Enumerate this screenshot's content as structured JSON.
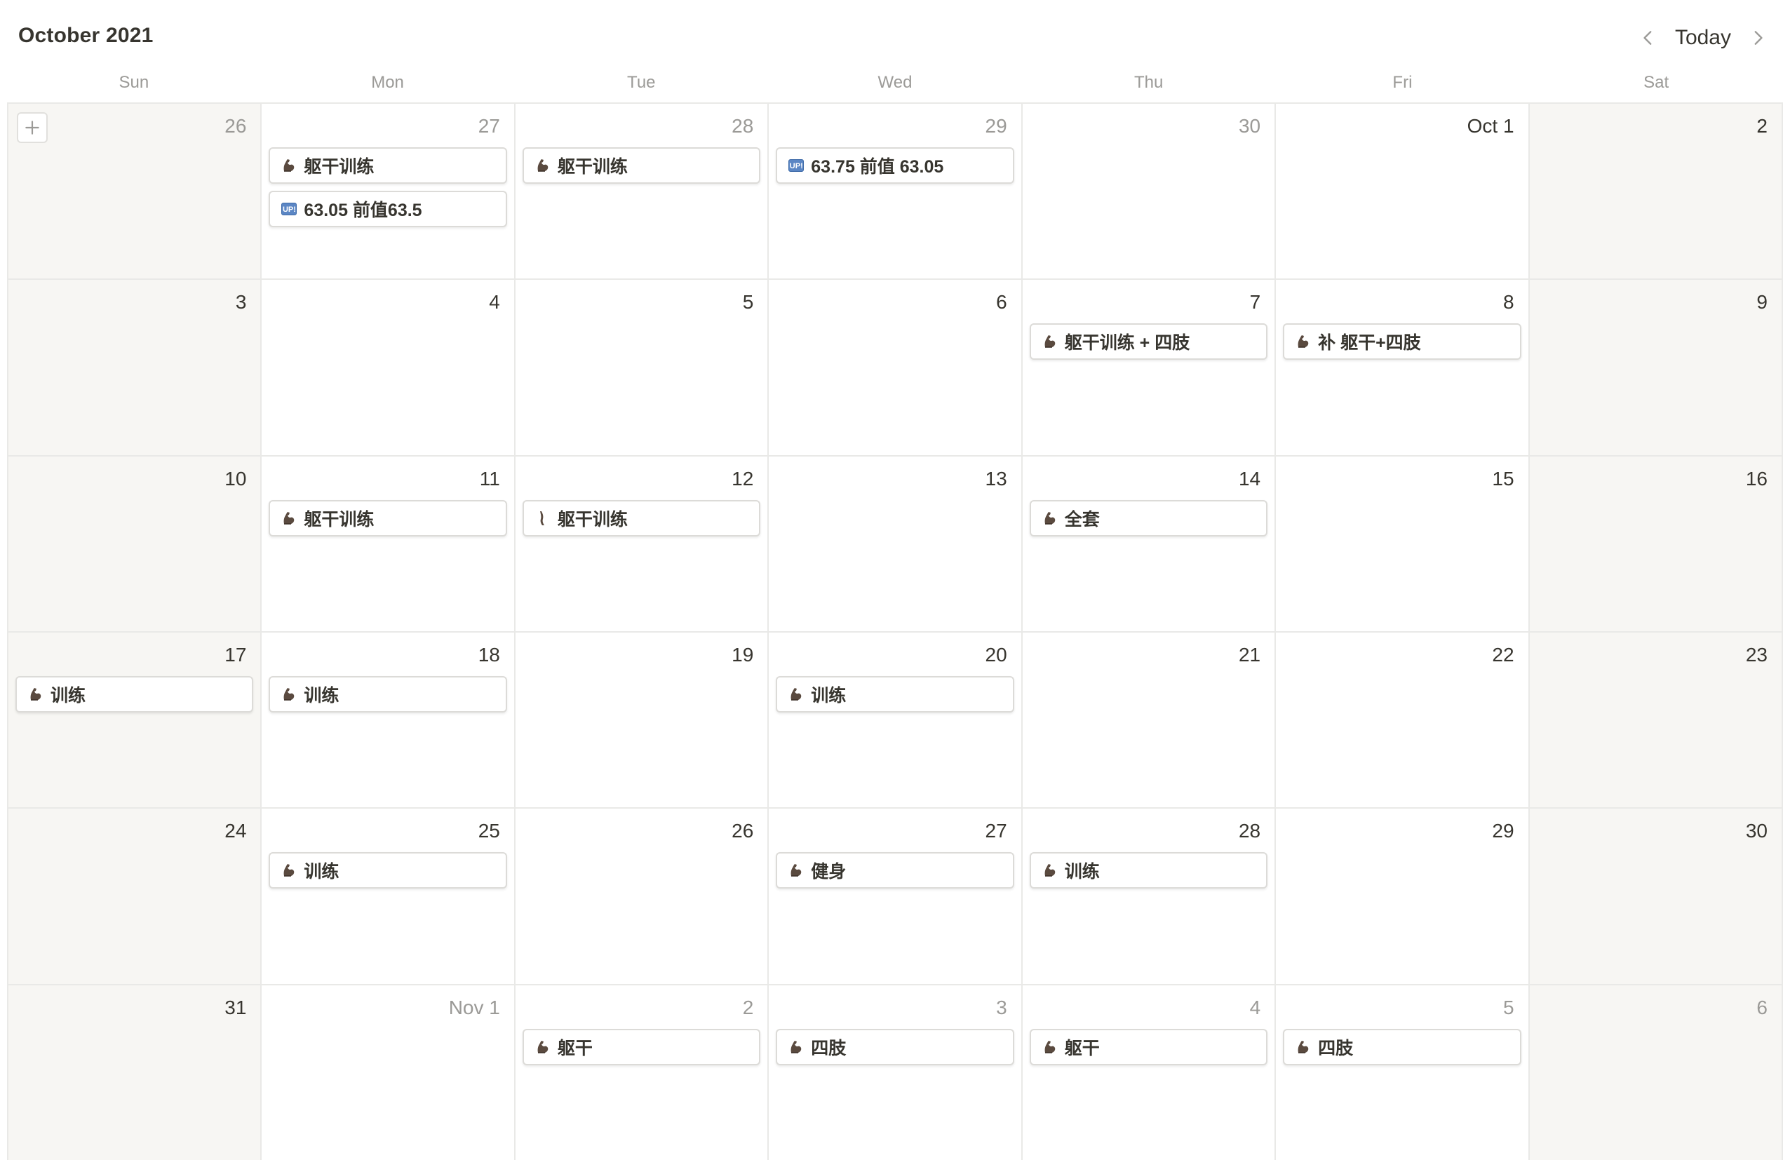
{
  "header": {
    "title": "October 2021",
    "today_label": "Today"
  },
  "weekdays": [
    "Sun",
    "Mon",
    "Tue",
    "Wed",
    "Thu",
    "Fri",
    "Sat"
  ],
  "weeks": [
    [
      {
        "label": "26",
        "muted": true,
        "events": []
      },
      {
        "label": "27",
        "muted": true,
        "events": [
          {
            "icon": "flexed-biceps-icon",
            "title": "躯干训练"
          },
          {
            "icon": "up-badge-icon",
            "title": "63.05 前值63.5"
          }
        ]
      },
      {
        "label": "28",
        "muted": true,
        "events": [
          {
            "icon": "flexed-biceps-icon",
            "title": "躯干训练"
          }
        ]
      },
      {
        "label": "29",
        "muted": true,
        "events": [
          {
            "icon": "up-badge-icon",
            "title": "63.75 前值 63.05"
          }
        ]
      },
      {
        "label": "30",
        "muted": true,
        "events": []
      },
      {
        "label": "Oct 1",
        "muted": false,
        "events": []
      },
      {
        "label": "2",
        "muted": false,
        "events": []
      }
    ],
    [
      {
        "label": "3",
        "muted": false,
        "events": []
      },
      {
        "label": "4",
        "muted": false,
        "events": []
      },
      {
        "label": "5",
        "muted": false,
        "events": []
      },
      {
        "label": "6",
        "muted": false,
        "events": []
      },
      {
        "label": "7",
        "muted": false,
        "events": [
          {
            "icon": "flexed-biceps-icon",
            "title": "躯干训练 + 四肢"
          }
        ]
      },
      {
        "label": "8",
        "muted": false,
        "events": [
          {
            "icon": "flexed-biceps-icon",
            "title": "补 躯干+四肢"
          }
        ]
      },
      {
        "label": "9",
        "muted": false,
        "events": []
      }
    ],
    [
      {
        "label": "10",
        "muted": false,
        "events": []
      },
      {
        "label": "11",
        "muted": false,
        "events": [
          {
            "icon": "flexed-biceps-icon",
            "title": "躯干训练"
          }
        ]
      },
      {
        "label": "12",
        "muted": false,
        "events": [
          {
            "icon": "leg-icon",
            "title": "躯干训练"
          }
        ]
      },
      {
        "label": "13",
        "muted": false,
        "events": []
      },
      {
        "label": "14",
        "muted": false,
        "events": [
          {
            "icon": "flexed-biceps-icon",
            "title": "全套"
          }
        ]
      },
      {
        "label": "15",
        "muted": false,
        "events": []
      },
      {
        "label": "16",
        "muted": false,
        "events": []
      }
    ],
    [
      {
        "label": "17",
        "muted": false,
        "events": [
          {
            "icon": "flexed-biceps-icon",
            "title": "训练"
          }
        ]
      },
      {
        "label": "18",
        "muted": false,
        "events": [
          {
            "icon": "flexed-biceps-icon",
            "title": "训练"
          }
        ]
      },
      {
        "label": "19",
        "muted": false,
        "events": []
      },
      {
        "label": "20",
        "muted": false,
        "events": [
          {
            "icon": "flexed-biceps-icon",
            "title": "训练"
          }
        ]
      },
      {
        "label": "21",
        "muted": false,
        "events": []
      },
      {
        "label": "22",
        "muted": false,
        "events": []
      },
      {
        "label": "23",
        "muted": false,
        "events": []
      }
    ],
    [
      {
        "label": "24",
        "muted": false,
        "events": []
      },
      {
        "label": "25",
        "muted": false,
        "events": [
          {
            "icon": "flexed-biceps-icon",
            "title": "训练"
          }
        ]
      },
      {
        "label": "26",
        "muted": false,
        "events": []
      },
      {
        "label": "27",
        "muted": false,
        "events": [
          {
            "icon": "flexed-biceps-icon",
            "title": "健身"
          }
        ]
      },
      {
        "label": "28",
        "muted": false,
        "events": [
          {
            "icon": "flexed-biceps-icon",
            "title": "训练"
          }
        ]
      },
      {
        "label": "29",
        "muted": false,
        "events": []
      },
      {
        "label": "30",
        "muted": false,
        "events": []
      }
    ],
    [
      {
        "label": "31",
        "muted": false,
        "events": []
      },
      {
        "label": "Nov 1",
        "muted": true,
        "events": []
      },
      {
        "label": "2",
        "muted": true,
        "events": [
          {
            "icon": "flexed-biceps-icon",
            "title": "躯干"
          }
        ]
      },
      {
        "label": "3",
        "muted": true,
        "events": [
          {
            "icon": "flexed-biceps-icon",
            "title": "四肢"
          }
        ]
      },
      {
        "label": "4",
        "muted": true,
        "events": [
          {
            "icon": "flexed-biceps-icon",
            "title": "躯干"
          }
        ]
      },
      {
        "label": "5",
        "muted": true,
        "events": [
          {
            "icon": "flexed-biceps-icon",
            "title": "四肢"
          }
        ]
      },
      {
        "label": "6",
        "muted": true,
        "events": []
      }
    ]
  ],
  "up_badge_text": "UP!",
  "colors": {
    "text": "#37352f",
    "muted": "#9b9a97",
    "weekend_bg": "#f7f6f3",
    "border": "#e9e9e7",
    "up_badge": "#5b86c4"
  }
}
